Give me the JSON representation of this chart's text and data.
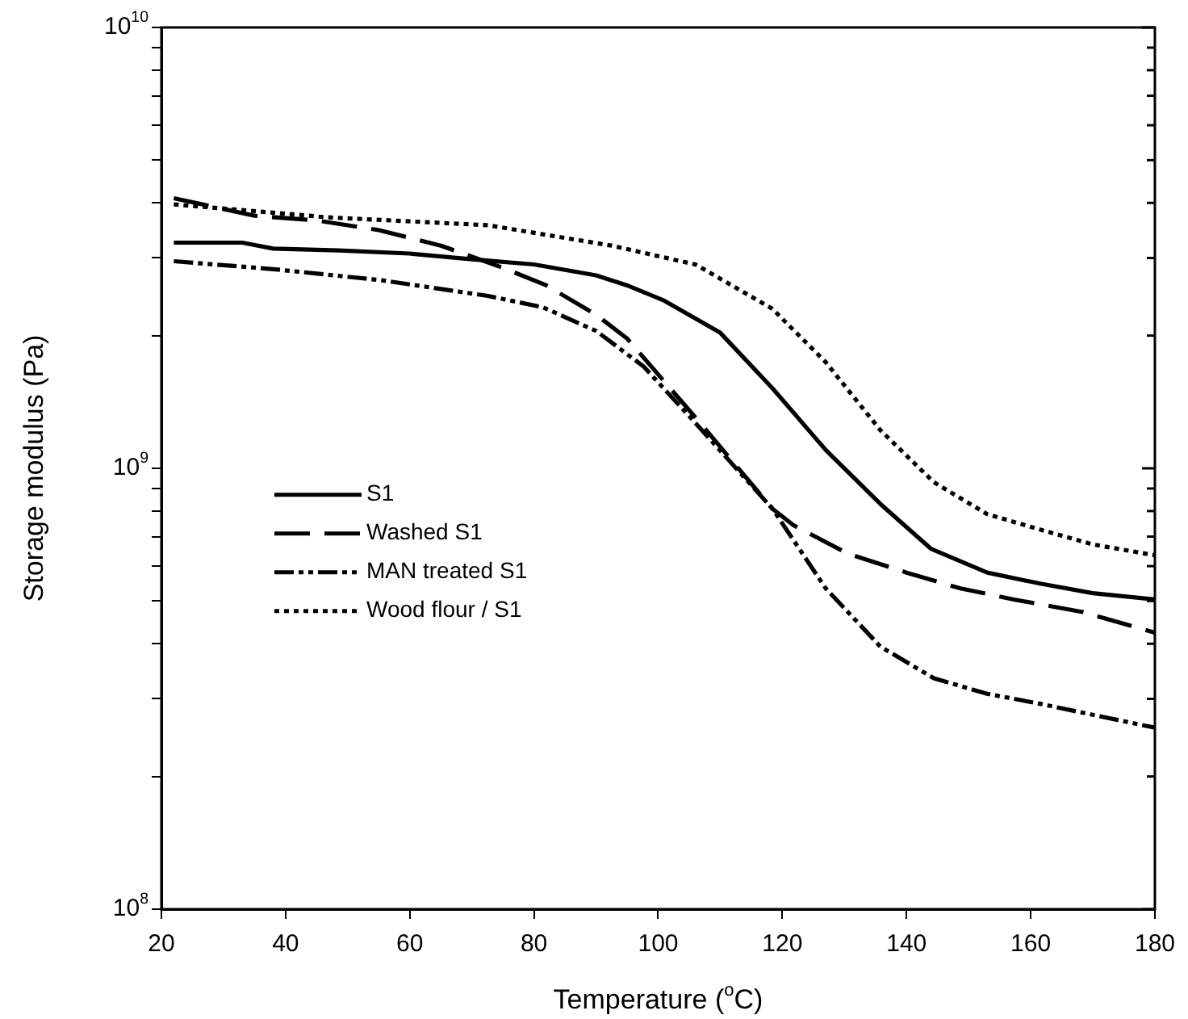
{
  "chart_data": {
    "type": "line",
    "xlabel": "Temperature ($^{o}$C)",
    "ylabel": "Storage modulus (Pa)",
    "xlim": [
      20,
      180
    ],
    "xticks": [
      20,
      40,
      60,
      80,
      100,
      120,
      140,
      160,
      180
    ],
    "ylim": [
      100000000,
      10000000000
    ],
    "log": "y",
    "yticks": [
      {
        "value": 100000000,
        "label": "10$^{8}$"
      },
      {
        "value": 200000000,
        "label": null
      },
      {
        "value": 300000000,
        "label": null
      },
      {
        "value": 400000000,
        "label": null
      },
      {
        "value": 500000000,
        "label": null
      },
      {
        "value": 600000000,
        "label": null
      },
      {
        "value": 700000000,
        "label": null
      },
      {
        "value": 800000000,
        "label": null
      },
      {
        "value": 900000000,
        "label": null
      },
      {
        "value": 1000000000,
        "label": "10$^{9}$"
      },
      {
        "value": 2000000000,
        "label": null
      },
      {
        "value": 3000000000,
        "label": null
      },
      {
        "value": 4000000000,
        "label": null
      },
      {
        "value": 5000000000,
        "label": null
      },
      {
        "value": 6000000000,
        "label": null
      },
      {
        "value": 7000000000,
        "label": null
      },
      {
        "value": 8000000000,
        "label": null
      },
      {
        "value": 9000000000,
        "label": null
      },
      {
        "value": 10000000000,
        "label": "10$^{10}$"
      }
    ],
    "grid": false,
    "legend": "center left",
    "marker": "none",
    "series": [
      {
        "name": "S1",
        "color": "#000000",
        "line_style": "solid",
        "x": [
          22,
          33,
          38,
          48.5,
          60,
          70,
          80,
          90,
          95,
          101,
          110,
          118.4,
          127,
          135.8,
          144,
          153,
          161.7,
          170,
          180
        ],
        "values": [
          3250000000,
          3250000000,
          3150000000,
          3120000000,
          3070000000,
          2980000000,
          2900000000,
          2740000000,
          2600000000,
          2400000000,
          2030000000,
          1520000000,
          1100000000,
          830000000,
          656000000,
          580000000,
          547000000,
          521000000,
          504000000
        ]
      },
      {
        "name": "Washed S1",
        "color": "#000000",
        "line_style": "dashed",
        "x": [
          22,
          35,
          45,
          55,
          65,
          75,
          82,
          90,
          95,
          106.3,
          118.4,
          121.8,
          130.6,
          140,
          148.7,
          157.3,
          168.4,
          180
        ],
        "values": [
          4100000000,
          3740000000,
          3650000000,
          3470000000,
          3200000000,
          2850000000,
          2600000000,
          2230000000,
          1970000000,
          1290000000,
          810000000,
          743000000,
          640000000,
          580000000,
          534000000,
          504000000,
          472000000,
          424000000
        ]
      },
      {
        "name": "MAN treated S1",
        "color": "#000000",
        "line_style": "dashdotdot",
        "x": [
          22,
          38,
          55.5,
          72.6,
          81.4,
          90,
          97.7,
          105.5,
          118.4,
          127,
          135.8,
          144.4,
          153,
          161.7,
          170,
          180
        ],
        "values": [
          2950000000,
          2830000000,
          2670000000,
          2460000000,
          2320000000,
          2050000000,
          1700000000,
          1290000000,
          810000000,
          534000000,
          394000000,
          334000000,
          308000000,
          292000000,
          276000000,
          258000000
        ]
      },
      {
        "name": "Wood flour / S1",
        "color": "#000000",
        "line_style": "dotted",
        "x": [
          22,
          46.7,
          72.6,
          92.5,
          106,
          118.4,
          127,
          135.8,
          144.4,
          153,
          161.7,
          170,
          180
        ],
        "values": [
          3970000000,
          3710000000,
          3560000000,
          3200000000,
          2900000000,
          2300000000,
          1740000000,
          1220000000,
          930000000,
          787000000,
          725000000,
          672000000,
          635000000
        ]
      }
    ]
  }
}
